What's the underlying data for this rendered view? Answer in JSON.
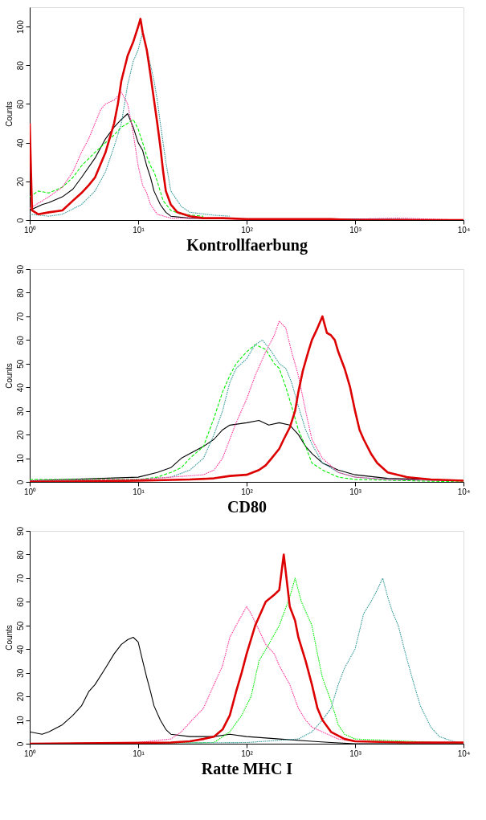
{
  "chart_data": [
    {
      "type": "line",
      "xlabel": "Kontrollfaerbung",
      "ylabel": "Counts",
      "log": "x",
      "grid": false,
      "xlim": [
        1,
        10000
      ],
      "ylim": [
        0,
        110
      ],
      "xticks": [
        {
          "value": 1,
          "label": "10⁰"
        },
        {
          "value": 10,
          "label": "10¹"
        },
        {
          "value": 100,
          "label": "10²"
        },
        {
          "value": 1000,
          "label": "10³"
        },
        {
          "value": 10000,
          "label": "10⁴"
        }
      ],
      "yticks": [
        0,
        20,
        40,
        60,
        80,
        100
      ],
      "series": [
        {
          "color": "#000000",
          "line_style": "solid",
          "x": [
            1,
            1.3,
            1.5,
            2,
            2.5,
            3,
            4,
            5,
            6,
            7,
            8,
            9,
            10,
            11,
            12,
            13,
            14,
            16,
            18,
            20,
            30,
            100,
            1000,
            10000
          ],
          "values": [
            5,
            8,
            9,
            12,
            16,
            22,
            32,
            42,
            48,
            52,
            55,
            48,
            40,
            36,
            28,
            22,
            15,
            8,
            4,
            2,
            1,
            0.5,
            0.5,
            0
          ]
        },
        {
          "color": "#00ee00",
          "line_style": "dashed",
          "x": [
            1,
            1.2,
            1.5,
            2,
            2.5,
            3,
            4,
            5,
            6,
            7,
            8,
            9,
            10,
            11,
            12,
            13,
            14,
            15,
            17,
            20,
            25,
            40
          ],
          "values": [
            12,
            15,
            14,
            17,
            22,
            28,
            35,
            40,
            44,
            48,
            50,
            52,
            47,
            40,
            33,
            28,
            25,
            20,
            10,
            5,
            3,
            2
          ]
        },
        {
          "color": "#339999",
          "line_style": "dotted",
          "x": [
            1,
            1.5,
            2,
            3,
            4,
            5,
            6,
            7,
            8,
            9,
            10,
            11,
            12,
            13,
            14,
            15,
            16,
            18,
            20,
            25,
            30,
            50,
            70
          ],
          "values": [
            3,
            2,
            3,
            8,
            15,
            25,
            38,
            50,
            70,
            82,
            88,
            97,
            88,
            80,
            72,
            62,
            50,
            30,
            15,
            7,
            4,
            2.5,
            2
          ]
        },
        {
          "color": "#ff3399",
          "line_style": "dotted",
          "x": [
            1,
            1.5,
            2,
            2.5,
            3,
            3.5,
            4,
            4.5,
            5,
            6,
            7,
            8,
            9,
            10,
            11,
            12,
            13,
            15,
            20,
            100,
            1000,
            2500,
            10000
          ],
          "values": [
            6,
            12,
            17,
            25,
            35,
            42,
            50,
            57,
            60,
            62,
            66,
            60,
            45,
            28,
            18,
            14,
            8,
            3,
            1,
            0.5,
            0.5,
            1,
            0
          ]
        },
        {
          "color": "#dd0000",
          "line_style": "solid",
          "x": [
            1,
            1.05,
            1.2,
            1.5,
            2,
            2.5,
            3,
            3.5,
            4,
            5,
            6,
            6.5,
            7,
            8,
            9,
            10,
            10.5,
            11,
            12,
            13,
            14,
            15,
            16,
            17,
            18,
            20,
            23,
            30,
            40,
            60,
            100,
            200,
            600,
            1000,
            10000
          ],
          "values": [
            50,
            5,
            3,
            4,
            5,
            10,
            14,
            18,
            22,
            35,
            50,
            60,
            72,
            85,
            92,
            100,
            104,
            97,
            88,
            75,
            62,
            50,
            38,
            25,
            15,
            8,
            4,
            2,
            1,
            1,
            0.5,
            0.5,
            0.5,
            0,
            0
          ]
        }
      ]
    },
    {
      "type": "line",
      "xlabel": "CD80",
      "ylabel": "Counts",
      "log": "x",
      "grid": false,
      "xlim": [
        1,
        10000
      ],
      "ylim": [
        0,
        90
      ],
      "xticks": [
        {
          "value": 1,
          "label": "10⁰"
        },
        {
          "value": 10,
          "label": "10¹"
        },
        {
          "value": 100,
          "label": "10²"
        },
        {
          "value": 1000,
          "label": "10³"
        },
        {
          "value": 10000,
          "label": "10⁴"
        }
      ],
      "yticks": [
        0,
        10,
        20,
        30,
        40,
        50,
        60,
        70,
        80,
        90
      ],
      "series": [
        {
          "color": "#000000",
          "line_style": "solid",
          "x": [
            1,
            10,
            15,
            20,
            25,
            30,
            40,
            50,
            60,
            70,
            100,
            130,
            160,
            200,
            250,
            300,
            350,
            400,
            500,
            700,
            1000,
            2000,
            5000,
            10000
          ],
          "values": [
            0.5,
            2,
            4,
            6,
            10,
            12,
            15,
            18,
            22,
            24,
            25,
            26,
            24,
            25,
            24,
            20,
            15,
            12,
            8,
            5,
            3,
            1.5,
            1,
            0.5
          ]
        },
        {
          "color": "#00ee00",
          "line_style": "dashed",
          "x": [
            1,
            10,
            15,
            20,
            25,
            30,
            40,
            50,
            60,
            70,
            80,
            100,
            120,
            150,
            180,
            200,
            230,
            260,
            300,
            350,
            400,
            500,
            700,
            1000,
            10000
          ],
          "values": [
            1,
            1,
            2,
            4,
            6,
            10,
            15,
            27,
            38,
            45,
            50,
            55,
            58,
            56,
            50,
            48,
            40,
            32,
            22,
            15,
            8,
            5,
            2,
            1,
            0
          ]
        },
        {
          "color": "#339999",
          "line_style": "dotted",
          "x": [
            1,
            10,
            20,
            30,
            40,
            50,
            60,
            70,
            80,
            100,
            120,
            140,
            170,
            200,
            230,
            260,
            300,
            350,
            400,
            500,
            700,
            1000,
            2000,
            10000
          ],
          "values": [
            0.5,
            1,
            2,
            5,
            10,
            20,
            30,
            42,
            48,
            52,
            58,
            60,
            55,
            50,
            48,
            42,
            32,
            22,
            16,
            8,
            4,
            2,
            1,
            0.5
          ]
        },
        {
          "color": "#ff3399",
          "line_style": "dotted",
          "x": [
            1,
            10,
            20,
            40,
            50,
            60,
            70,
            80,
            100,
            120,
            150,
            180,
            200,
            230,
            260,
            300,
            350,
            400,
            500,
            700,
            1000,
            2000,
            10000
          ],
          "values": [
            0.5,
            1,
            2,
            3,
            5,
            10,
            18,
            25,
            35,
            45,
            55,
            62,
            68,
            65,
            55,
            45,
            30,
            18,
            10,
            4,
            2,
            1,
            0.5
          ]
        },
        {
          "color": "#dd0000",
          "line_style": "solid",
          "x": [
            1,
            10,
            30,
            50,
            70,
            100,
            130,
            150,
            170,
            200,
            220,
            250,
            280,
            300,
            330,
            370,
            400,
            450,
            500,
            550,
            600,
            650,
            700,
            800,
            900,
            1000,
            1100,
            1200,
            1400,
            1600,
            2000,
            3000,
            5000,
            10000
          ],
          "values": [
            0,
            0.5,
            1,
            1.5,
            2.5,
            3,
            5,
            7,
            10,
            14,
            18,
            23,
            30,
            38,
            47,
            55,
            60,
            65,
            70,
            63,
            62,
            60,
            55,
            48,
            40,
            30,
            22,
            18,
            12,
            8,
            4,
            2,
            1,
            0.5
          ]
        }
      ]
    },
    {
      "type": "line",
      "xlabel": "Ratte MHC I",
      "ylabel": "Counts",
      "log": "x",
      "grid": false,
      "xlim": [
        1,
        10000
      ],
      "ylim": [
        0,
        90
      ],
      "xticks": [
        {
          "value": 1,
          "label": "10⁰"
        },
        {
          "value": 10,
          "label": "10¹"
        },
        {
          "value": 100,
          "label": "10²"
        },
        {
          "value": 1000,
          "label": "10³"
        },
        {
          "value": 10000,
          "label": "10⁴"
        }
      ],
      "yticks": [
        0,
        10,
        20,
        30,
        40,
        50,
        60,
        70,
        80,
        90
      ],
      "series": [
        {
          "color": "#000000",
          "line_style": "solid",
          "x": [
            1,
            1.3,
            1.5,
            2,
            2.5,
            3,
            3.5,
            4,
            5,
            6,
            7,
            8,
            9,
            10,
            11,
            12,
            13,
            14,
            16,
            18,
            20,
            30,
            50,
            70,
            100,
            200,
            400,
            600,
            1000,
            10000
          ],
          "values": [
            5,
            4,
            5,
            8,
            12,
            16,
            22,
            25,
            32,
            38,
            42,
            44,
            45,
            43,
            35,
            28,
            22,
            16,
            10,
            6,
            4,
            3,
            3,
            4,
            3,
            2,
            1,
            0.5,
            0,
            0
          ]
        },
        {
          "color": "#00ee00",
          "line_style": "dotted",
          "x": [
            1,
            50,
            70,
            90,
            110,
            130,
            160,
            200,
            250,
            280,
            320,
            400,
            450,
            500,
            600,
            700,
            800,
            1000,
            10000
          ],
          "values": [
            0,
            0.5,
            5,
            12,
            20,
            35,
            42,
            50,
            62,
            70,
            60,
            50,
            38,
            28,
            18,
            8,
            4,
            2,
            0
          ]
        },
        {
          "color": "#339999",
          "line_style": "dotted",
          "x": [
            1,
            100,
            300,
            400,
            500,
            600,
            700,
            800,
            1000,
            1200,
            1400,
            1600,
            1800,
            2000,
            2200,
            2500,
            3000,
            3500,
            4000,
            5000,
            6000,
            8000,
            10000
          ],
          "values": [
            0,
            0.5,
            2,
            5,
            10,
            15,
            25,
            32,
            40,
            55,
            60,
            65,
            70,
            62,
            56,
            50,
            36,
            25,
            16,
            7,
            3,
            1,
            0
          ]
        },
        {
          "color": "#ff3399",
          "line_style": "dotted",
          "x": [
            1,
            10,
            20,
            25,
            30,
            40,
            50,
            60,
            70,
            80,
            100,
            110,
            130,
            150,
            180,
            200,
            250,
            300,
            350,
            400,
            500,
            700,
            1000,
            10000
          ],
          "values": [
            0,
            0.5,
            2,
            5,
            9,
            15,
            25,
            33,
            45,
            50,
            58,
            55,
            48,
            42,
            38,
            33,
            25,
            15,
            10,
            7,
            5,
            2,
            1,
            0
          ]
        },
        {
          "color": "#dd0000",
          "line_style": "solid",
          "x": [
            1,
            20,
            30,
            40,
            50,
            60,
            70,
            80,
            90,
            100,
            120,
            150,
            180,
            200,
            220,
            250,
            280,
            300,
            350,
            400,
            450,
            500,
            600,
            800,
            1000,
            3000,
            10000
          ],
          "values": [
            0,
            0.5,
            1,
            2,
            3,
            6,
            12,
            22,
            30,
            38,
            50,
            60,
            63,
            65,
            80,
            58,
            52,
            45,
            35,
            25,
            15,
            10,
            5,
            2,
            1,
            0.5,
            0.5
          ]
        }
      ]
    }
  ]
}
